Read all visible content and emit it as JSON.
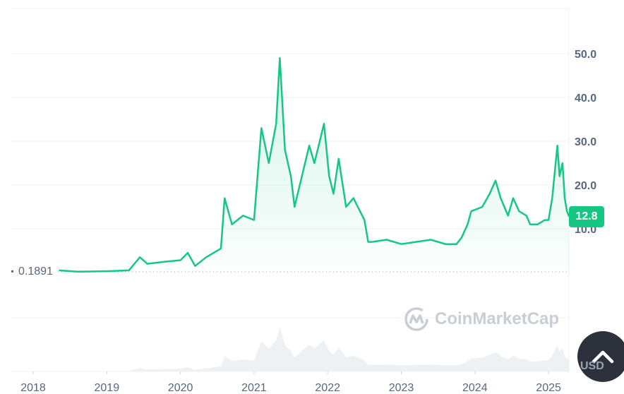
{
  "chart_data": {
    "type": "area",
    "title": "",
    "xlabel": "",
    "ylabel": "",
    "currency": "USD",
    "x_ticks": [
      "2018",
      "2019",
      "2020",
      "2021",
      "2022",
      "2023",
      "2024",
      "2025"
    ],
    "y_ticks": [
      "10.0",
      "20.0",
      "30.0",
      "40.0",
      "50.0"
    ],
    "ylim": [
      0,
      60
    ],
    "xlim": [
      2018,
      2025.3
    ],
    "grid": true,
    "line_color": "#16c784",
    "baseline_value": "0.1891",
    "last_value": "12.8",
    "series": [
      {
        "x": [
          2018.35,
          2018.6,
          2019.0,
          2019.3,
          2019.45,
          2019.55,
          2019.8,
          2020.0,
          2020.1,
          2020.2,
          2020.35,
          2020.55,
          2020.6,
          2020.7,
          2020.85,
          2021.0,
          2021.1,
          2021.2,
          2021.3,
          2021.35,
          2021.42,
          2021.5,
          2021.55,
          2021.65,
          2021.75,
          2021.82,
          2021.95,
          2022.02,
          2022.08,
          2022.15,
          2022.25,
          2022.35,
          2022.5,
          2022.55,
          2022.6,
          2022.8,
          2023.0,
          2023.2,
          2023.4,
          2023.6,
          2023.75,
          2023.82,
          2023.9,
          2023.95,
          2024.1,
          2024.2,
          2024.28,
          2024.35,
          2024.45,
          2024.52,
          2024.6,
          2024.7,
          2024.75,
          2024.85,
          2024.95,
          2025.0,
          2025.05,
          2025.12,
          2025.15,
          2025.19,
          2025.22,
          2025.25,
          2025.28
        ],
        "y": [
          0.5,
          0.2,
          0.3,
          0.5,
          3.5,
          2.0,
          2.5,
          2.8,
          4.5,
          1.5,
          3.5,
          5.5,
          17,
          11,
          13,
          12,
          33,
          25,
          34,
          49,
          28,
          22,
          15,
          22,
          29,
          25,
          34,
          22,
          18,
          26,
          15,
          17,
          12,
          7,
          7,
          7.5,
          6.5,
          7,
          7.5,
          6.5,
          6.5,
          8,
          11,
          14,
          15,
          18,
          21,
          17,
          13,
          17,
          14,
          13,
          11,
          11,
          12,
          12,
          17,
          29,
          22,
          25,
          17,
          14,
          12.8
        ]
      }
    ]
  },
  "watermark": "CoinMarketCap",
  "scroll_top_icon": "chevron-up-icon"
}
